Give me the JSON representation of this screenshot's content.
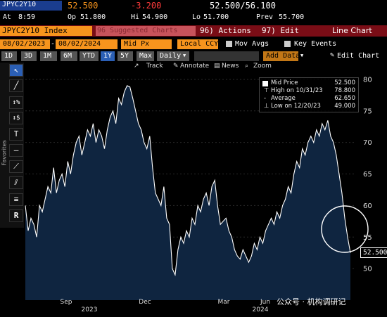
{
  "header": {
    "ticker": "JPYC2Y10",
    "last": "52.500",
    "change": "-3.200",
    "bid_ask": "52.500/56.100",
    "time_label": "At",
    "time": "8:59",
    "open_label": "Op",
    "open": "51.800",
    "high_label": "Hi",
    "high": "54.900",
    "low_label": "Lo",
    "low": "51.700",
    "prev_label": "Prev",
    "prev": "55.700"
  },
  "security_bar": {
    "security": "JPYC2Y10 Index",
    "function": "96 Suggested Charts",
    "actions": "96) Actions",
    "edit": "97) Edit",
    "chart_title": "Line Chart"
  },
  "controls": {
    "start_date": "08/02/2023",
    "end_date": "08/02/2024",
    "price_field": "Mid Px",
    "currency": "Local CCY",
    "mov_avgs": "Mov Avgs",
    "key_events": "Key Events"
  },
  "periods": {
    "items": [
      "1D",
      "3D",
      "1M",
      "6M",
      "YTD",
      "1Y",
      "5Y",
      "Max"
    ],
    "selected": "1Y",
    "frequency": "Daily",
    "add_data": "Add Data",
    "edit_chart": "Edit Chart"
  },
  "toolbar2": {
    "track": "Track",
    "annotate": "Annotate",
    "news": "News",
    "zoom": "Zoom"
  },
  "sidebar": {
    "favorites_label": "Favorites",
    "tools": [
      "cursor-icon",
      "pen-icon",
      "percent-icon",
      "dollar-icon",
      "text-icon",
      "hline-icon",
      "trend-icon",
      "channel-icon",
      "fib-icon",
      "r-icon"
    ]
  },
  "legend": {
    "series": "Mid Price",
    "series_value": "52.500",
    "high_label": "High on 10/31/23",
    "high_value": "78.800",
    "avg_label": "Average",
    "avg_value": "62.650",
    "low_label": "Low on 12/20/23",
    "low_value": "49.000"
  },
  "last_price_tag": "52.500",
  "watermark": "公众号 · 机构调研记",
  "colors": {
    "accent_orange": "#f7941d",
    "negative_red": "#ff3b3b",
    "area_fill": "#0f2540",
    "line": "#ffffff"
  },
  "chart_data": {
    "type": "area",
    "series": [
      {
        "name": "Mid Price",
        "values": [
          60,
          56,
          58,
          57,
          55,
          60,
          59,
          61,
          63,
          62,
          66,
          62,
          64,
          65,
          63,
          67,
          65,
          68,
          70,
          71,
          68,
          70,
          72,
          71,
          73,
          70,
          72,
          71,
          69,
          72,
          74,
          75,
          73,
          77,
          76,
          78,
          79,
          78.8,
          77,
          75,
          73,
          72,
          70,
          69,
          71,
          66,
          62,
          61,
          60,
          63,
          58,
          57,
          50,
          49,
          53,
          55,
          54,
          56,
          55,
          58,
          57,
          60,
          59,
          61,
          62,
          60,
          63,
          64,
          60,
          57,
          57.5,
          58,
          56,
          55,
          53,
          52,
          51.5,
          53,
          52,
          51,
          52,
          54,
          53,
          55,
          54,
          56,
          57,
          58,
          57,
          59,
          58,
          60,
          61,
          63,
          62,
          65,
          67,
          66,
          69,
          68,
          70,
          71,
          70,
          72,
          71,
          73,
          72,
          73.5,
          71,
          70,
          68,
          65,
          62,
          58,
          55,
          52.5
        ]
      }
    ],
    "x_tick_labels": [
      "Sep",
      "Dec",
      "Mar",
      "Jun"
    ],
    "x_year_labels": [
      "2023",
      "2024"
    ],
    "y_ticks": [
      50,
      55,
      60,
      65,
      70,
      75,
      80
    ],
    "ylim": [
      45,
      82
    ],
    "grid": true
  }
}
